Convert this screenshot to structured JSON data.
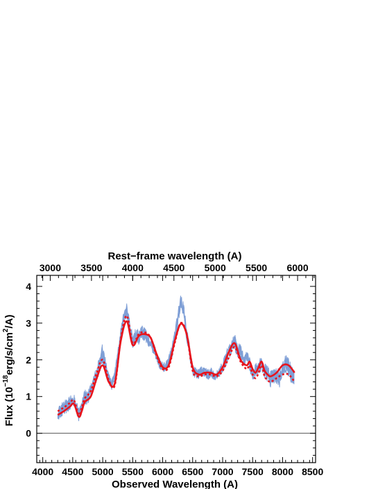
{
  "chart_data": {
    "type": "line",
    "xlabel": "Observed Wavelength (A)",
    "ylabel": "Flux (10",
    "ylabel_sup": "−18",
    "ylabel_mid": "erg/s/cm",
    "ylabel_sup2": "2",
    "ylabel_end": "/A)",
    "top_xlabel": "Rest−frame wavelength (A)",
    "xlim": [
      3900,
      8550
    ],
    "ylim": [
      -0.8,
      4.3
    ],
    "x_ticks": [
      4000,
      4500,
      5000,
      5500,
      6000,
      6500,
      7000,
      7500,
      8000,
      8500
    ],
    "y_ticks": [
      0,
      1,
      2,
      3,
      4
    ],
    "top_ticks": [
      3000,
      3500,
      4000,
      4500,
      5000,
      5500,
      6000
    ],
    "top_scale_factor": 1.375,
    "zero_line": 0,
    "series": [
      {
        "style": "noisy-band",
        "color": "#7f9fd6",
        "x": [
          4250,
          4300,
          4350,
          4400,
          4450,
          4500,
          4550,
          4600,
          4650,
          4700,
          4750,
          4800,
          4850,
          4900,
          4950,
          5000,
          5050,
          5100,
          5150,
          5200,
          5250,
          5300,
          5350,
          5400,
          5450,
          5500,
          5550,
          5600,
          5650,
          5700,
          5750,
          5800,
          5850,
          5900,
          5950,
          6000,
          6050,
          6100,
          6150,
          6200,
          6250,
          6300,
          6350,
          6400,
          6450,
          6500,
          6550,
          6600,
          6650,
          6700,
          6750,
          6800,
          6850,
          6900,
          6950,
          7000,
          7050,
          7100,
          7150,
          7200,
          7250,
          7300,
          7350,
          7400,
          7450,
          7500,
          7550,
          7600,
          7650,
          7700,
          7750,
          7800,
          7850,
          7900,
          7950,
          8000,
          8050,
          8100,
          8150,
          8200
        ],
        "y": [
          0.5,
          0.6,
          0.7,
          0.75,
          0.8,
          0.9,
          0.8,
          0.5,
          0.7,
          1.0,
          0.95,
          1.2,
          1.4,
          1.6,
          1.9,
          2.2,
          1.8,
          1.5,
          1.3,
          1.6,
          2.1,
          2.7,
          3.2,
          3.35,
          2.9,
          2.5,
          2.7,
          2.6,
          2.75,
          2.7,
          2.55,
          2.4,
          2.3,
          2.1,
          1.9,
          1.8,
          1.8,
          1.95,
          2.2,
          2.6,
          3.1,
          3.6,
          3.3,
          2.7,
          2.2,
          1.7,
          1.65,
          1.6,
          1.7,
          1.65,
          1.6,
          1.65,
          1.6,
          1.55,
          1.7,
          1.8,
          2.0,
          2.2,
          2.35,
          2.5,
          2.3,
          2.2,
          2.0,
          2.1,
          1.9,
          1.6,
          1.7,
          1.8,
          1.9,
          1.7,
          1.6,
          1.5,
          1.6,
          1.55,
          1.5,
          1.7,
          1.9,
          1.8,
          1.6,
          1.5
        ],
        "noise": [
          0.2,
          0.2,
          0.2,
          0.2,
          0.2,
          0.2,
          0.2,
          0.2,
          0.2,
          0.2,
          0.2,
          0.2,
          0.2,
          0.2,
          0.25,
          0.3,
          0.2,
          0.15,
          0.15,
          0.15,
          0.15,
          0.2,
          0.2,
          0.2,
          0.2,
          0.2,
          0.2,
          0.2,
          0.2,
          0.2,
          0.15,
          0.15,
          0.15,
          0.15,
          0.15,
          0.15,
          0.15,
          0.15,
          0.2,
          0.2,
          0.2,
          0.25,
          0.25,
          0.2,
          0.2,
          0.2,
          0.15,
          0.15,
          0.15,
          0.15,
          0.15,
          0.15,
          0.15,
          0.15,
          0.15,
          0.15,
          0.2,
          0.2,
          0.2,
          0.25,
          0.25,
          0.2,
          0.2,
          0.2,
          0.2,
          0.2,
          0.2,
          0.2,
          0.2,
          0.2,
          0.25,
          0.25,
          0.25,
          0.25,
          0.25,
          0.25,
          0.25,
          0.25,
          0.25,
          0.25
        ]
      },
      {
        "style": "solid",
        "color": "#e8141c",
        "x": [
          4250,
          4350,
          4450,
          4520,
          4600,
          4650,
          4700,
          4800,
          4900,
          5000,
          5100,
          5200,
          5300,
          5400,
          5500,
          5600,
          5700,
          5800,
          5900,
          6000,
          6100,
          6200,
          6300,
          6400,
          6500,
          6600,
          6700,
          6800,
          6900,
          7000,
          7100,
          7200,
          7300,
          7400,
          7450,
          7500,
          7550,
          7600,
          7650,
          7700,
          7750,
          7800,
          7900,
          8000,
          8100,
          8200
        ],
        "y": [
          0.5,
          0.6,
          0.72,
          0.8,
          0.45,
          0.6,
          0.85,
          1.0,
          1.5,
          1.85,
          1.4,
          1.35,
          2.5,
          3.05,
          2.4,
          2.65,
          2.7,
          2.6,
          2.15,
          1.8,
          1.85,
          2.5,
          2.98,
          2.7,
          1.8,
          1.6,
          1.65,
          1.65,
          1.6,
          1.8,
          2.2,
          2.45,
          2.0,
          1.85,
          1.95,
          1.75,
          1.65,
          1.8,
          1.95,
          1.7,
          1.6,
          1.55,
          1.65,
          1.85,
          1.85,
          1.65
        ]
      },
      {
        "style": "dotted",
        "color": "#e8141c",
        "x": [
          4250,
          4350,
          4450,
          4520,
          4600,
          4650,
          4700,
          4800,
          4900,
          5000,
          5100,
          5200,
          5300,
          5400,
          5500,
          5600,
          5700,
          5800,
          5900,
          6000,
          6100,
          6200,
          6300,
          6400,
          6500,
          6600,
          6700,
          6800,
          6900,
          7000,
          7100,
          7200,
          7300,
          7400,
          7450,
          7500,
          7550,
          7600,
          7650,
          7700,
          7750,
          7800,
          7900,
          8000,
          8100,
          8200
        ],
        "y": [
          0.6,
          0.7,
          0.82,
          0.9,
          0.5,
          0.7,
          0.95,
          1.15,
          1.65,
          2.0,
          1.45,
          1.3,
          2.55,
          3.2,
          2.45,
          2.7,
          2.75,
          2.6,
          2.1,
          1.75,
          1.8,
          2.45,
          3.0,
          2.7,
          1.7,
          1.55,
          1.6,
          1.6,
          1.55,
          1.7,
          2.05,
          2.35,
          1.95,
          1.75,
          1.85,
          1.6,
          1.5,
          1.65,
          1.85,
          1.55,
          1.45,
          1.4,
          1.5,
          1.6,
          1.6,
          1.4
        ]
      }
    ]
  }
}
